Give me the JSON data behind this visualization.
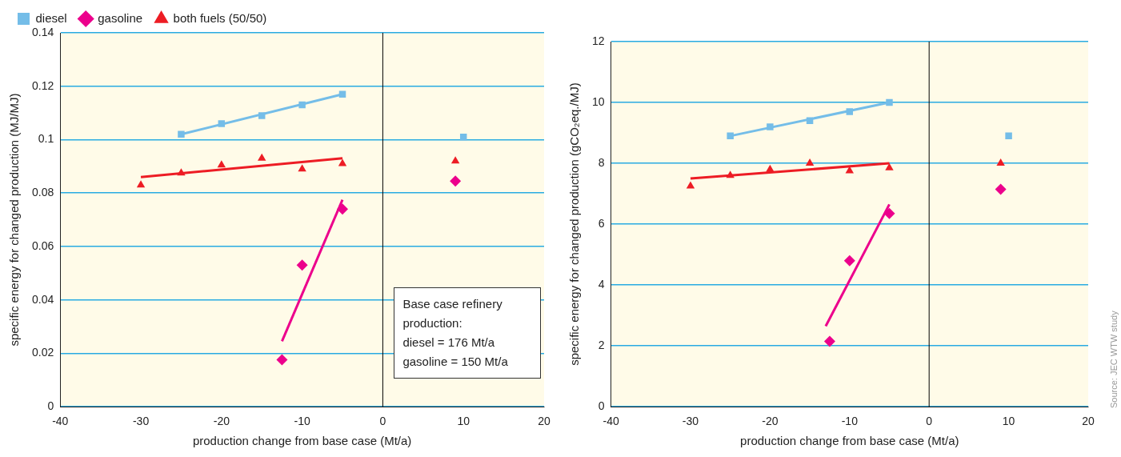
{
  "chart_data": [
    {
      "type": "scatter",
      "xlabel": "production change from base case (Mt/a)",
      "ylabel": "specific energy for changed production (MJ/MJ)",
      "xlim": [
        -40,
        20
      ],
      "xticks": [
        -40,
        -30,
        -20,
        -10,
        0,
        10,
        20
      ],
      "ylim": [
        0,
        0.14
      ],
      "yticks": [
        0,
        0.02,
        0.04,
        0.06,
        0.08,
        0.1,
        0.12,
        0.14
      ],
      "grid": "y",
      "legend": "top left",
      "series": [
        {
          "name": "diesel",
          "marker": "square",
          "color": "#74bde8",
          "x": [
            -25,
            -20,
            -15,
            -10,
            -5,
            10
          ],
          "values": [
            0.102,
            0.106,
            0.109,
            0.113,
            0.117,
            0.101
          ]
        },
        {
          "name": "gasoline",
          "marker": "diamond",
          "color": "#ec008c",
          "x": [
            -12.5,
            -10,
            -5,
            9
          ],
          "values": [
            0.0176,
            0.053,
            0.074,
            0.0845
          ]
        },
        {
          "name": "both fuels (50/50)",
          "marker": "triangle",
          "color": "#ed1c24",
          "x": [
            -30,
            -25,
            -20,
            -15,
            -10,
            -5,
            9
          ],
          "values": [
            0.083,
            0.0875,
            0.0905,
            0.093,
            0.089,
            0.091,
            0.092
          ]
        },
        {
          "type": "line",
          "marker": "none",
          "color": "#74bde8",
          "x": [
            -25,
            -5
          ],
          "values": [
            0.102,
            0.117
          ]
        },
        {
          "type": "line",
          "marker": "none",
          "color": "#ec008c",
          "x": [
            -12.5,
            -5
          ],
          "values": [
            0.0245,
            0.0775
          ]
        },
        {
          "type": "line",
          "marker": "none",
          "color": "#ed1c24",
          "x": [
            -30,
            -5
          ],
          "values": [
            0.086,
            0.093
          ]
        }
      ],
      "ref_lines": [
        {
          "axis": "x",
          "value": 0,
          "color": "#000000"
        }
      ],
      "annotations": [
        "Base case refinery production:",
        "diesel = 176 Mt/a",
        "gasoline = 150 Mt/a"
      ]
    },
    {
      "type": "scatter",
      "xlabel": "production change from base case (Mt/a)",
      "ylabel": "specific energy for changed production (gCO₂eq./MJ)",
      "xlim": [
        -40,
        20
      ],
      "xticks": [
        -40,
        -30,
        -20,
        -10,
        0,
        10,
        20
      ],
      "ylim": [
        0,
        12
      ],
      "yticks": [
        0,
        2,
        4,
        6,
        8,
        10,
        12
      ],
      "grid": "y",
      "series": [
        {
          "marker": "square",
          "color": "#74bde8",
          "x": [
            -25,
            -20,
            -15,
            -10,
            -5,
            10
          ],
          "values": [
            8.9,
            9.2,
            9.4,
            9.7,
            10.0,
            8.9
          ]
        },
        {
          "marker": "diamond",
          "color": "#ec008c",
          "x": [
            -12.5,
            -10,
            -5,
            9
          ],
          "values": [
            2.15,
            4.8,
            6.35,
            7.15
          ]
        },
        {
          "marker": "triangle",
          "color": "#ed1c24",
          "x": [
            -30,
            -25,
            -20,
            -15,
            -10,
            -5,
            9
          ],
          "values": [
            7.25,
            7.6,
            7.8,
            8.0,
            7.75,
            7.85,
            8.0
          ]
        },
        {
          "type": "line",
          "marker": "none",
          "color": "#74bde8",
          "x": [
            -25,
            -5
          ],
          "values": [
            8.9,
            10.0
          ]
        },
        {
          "type": "line",
          "marker": "none",
          "color": "#ec008c",
          "x": [
            -13,
            -5
          ],
          "values": [
            2.65,
            6.65
          ]
        },
        {
          "type": "line",
          "marker": "none",
          "color": "#ed1c24",
          "x": [
            -30,
            -5
          ],
          "values": [
            7.5,
            8.0
          ]
        }
      ],
      "ref_lines": [
        {
          "axis": "x",
          "value": 0,
          "color": "#000000"
        }
      ],
      "annotations": [
        "Source: JEC WTW study"
      ]
    }
  ]
}
